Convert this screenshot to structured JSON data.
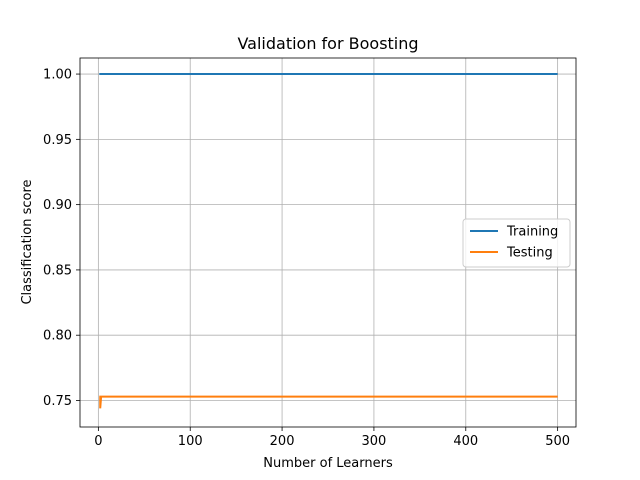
{
  "chart_data": {
    "type": "line",
    "title": "Validation for Boosting",
    "xlabel": "Number of Learners",
    "ylabel": "Classification score",
    "xlim": [
      -20,
      520
    ],
    "ylim": [
      0.7297,
      1.0123
    ],
    "xticks": [
      0,
      100,
      200,
      300,
      400,
      500
    ],
    "yticks": [
      0.75,
      0.8,
      0.85,
      0.9,
      0.95,
      1.0
    ],
    "xtick_labels": [
      "0",
      "100",
      "200",
      "300",
      "400",
      "500"
    ],
    "ytick_labels": [
      "0.75",
      "0.80",
      "0.85",
      "0.90",
      "0.95",
      "1.00"
    ],
    "grid": true,
    "legend_position": "center-right",
    "series": [
      {
        "name": "Training",
        "color": "#1f77b4",
        "x": [
          1,
          2,
          500
        ],
        "y": [
          1.0,
          1.0,
          1.0
        ]
      },
      {
        "name": "Testing",
        "color": "#ff7f0e",
        "x": [
          1,
          2,
          2,
          3,
          500
        ],
        "y": [
          0.753,
          0.753,
          0.744,
          0.753,
          0.753
        ]
      }
    ]
  }
}
